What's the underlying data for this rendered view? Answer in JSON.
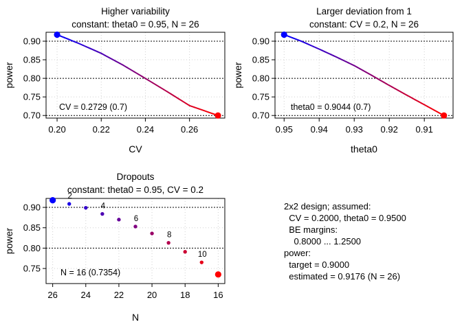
{
  "chart_data": [
    {
      "type": "line",
      "title": "Higher variability",
      "subtitle": "constant: theta0 = 0.95, N = 26",
      "xlabel": "CV",
      "ylabel": "power",
      "xlim": [
        0.195,
        0.276
      ],
      "ylim": [
        0.693,
        0.924
      ],
      "xticks": [
        0.2,
        0.22,
        0.24,
        0.26
      ],
      "xtick_labels": [
        "0.20",
        "0.22",
        "0.24",
        "0.26"
      ],
      "yticks": [
        0.7,
        0.75,
        0.8,
        0.85,
        0.9
      ],
      "ytick_labels": [
        "0.70",
        "0.75",
        "0.80",
        "0.85",
        "0.90"
      ],
      "hlines": [
        0.9,
        0.8,
        0.7
      ],
      "reverse_x": false,
      "grid": true,
      "x": [
        0.2,
        0.21,
        0.22,
        0.23,
        0.24,
        0.25,
        0.26,
        0.2729
      ],
      "y": [
        0.9176,
        0.8935,
        0.8673,
        0.8352,
        0.7998,
        0.7638,
        0.7267,
        0.7
      ],
      "start_point": {
        "x": 0.2,
        "y": 0.9176,
        "color": "#0000ff"
      },
      "end_point": {
        "x": 0.2729,
        "y": 0.7,
        "color": "#ff0000"
      },
      "annotation": "CV = 0.2729 (0.7)"
    },
    {
      "type": "line",
      "title": "Larger deviation from 1",
      "subtitle": "constant: CV = 0.2, N = 26",
      "xlabel": "theta0",
      "ylabel": "power",
      "xlim": [
        0.9526,
        0.9018
      ],
      "ylim": [
        0.693,
        0.924
      ],
      "xticks": [
        0.95,
        0.94,
        0.93,
        0.92,
        0.91
      ],
      "xtick_labels": [
        "0.95",
        "0.94",
        "0.93",
        "0.92",
        "0.91"
      ],
      "yticks": [
        0.7,
        0.75,
        0.8,
        0.85,
        0.9
      ],
      "ytick_labels": [
        "0.70",
        "0.75",
        "0.80",
        "0.85",
        "0.90"
      ],
      "hlines": [
        0.9,
        0.8,
        0.7
      ],
      "reverse_x": true,
      "grid": true,
      "x": [
        0.95,
        0.945,
        0.94,
        0.935,
        0.93,
        0.925,
        0.92,
        0.915,
        0.91,
        0.9044
      ],
      "y": [
        0.9176,
        0.8996,
        0.8787,
        0.857,
        0.8343,
        0.808,
        0.7809,
        0.7547,
        0.729,
        0.7
      ],
      "start_point": {
        "x": 0.95,
        "y": 0.9176,
        "color": "#0000ff"
      },
      "end_point": {
        "x": 0.9044,
        "y": 0.7,
        "color": "#ff0000"
      },
      "annotation": "theta0 = 0.9044 (0.7)"
    },
    {
      "type": "scatter",
      "title": "Dropouts",
      "subtitle": "constant: theta0 = 0.95, CV = 0.2",
      "xlabel": "N",
      "ylabel": "power",
      "xlim": [
        26.4,
        15.6
      ],
      "ylim": [
        0.713,
        0.922
      ],
      "xticks": [
        26,
        24,
        22,
        20,
        18,
        16
      ],
      "xtick_labels": [
        "26",
        "24",
        "22",
        "20",
        "18",
        "16"
      ],
      "yticks": [
        0.7,
        0.75,
        0.8,
        0.85,
        0.9
      ],
      "ytick_labels": [
        "0.70",
        "0.75",
        "0.80",
        "0.85",
        "0.90"
      ],
      "hlines": [
        0.9,
        0.8,
        0.7
      ],
      "reverse_x": true,
      "grid": true,
      "x": [
        26,
        25,
        24,
        23,
        22,
        21,
        20,
        19,
        18,
        17,
        16
      ],
      "y": [
        0.9176,
        0.9085,
        0.899,
        0.884,
        0.87,
        0.853,
        0.836,
        0.813,
        0.791,
        0.765,
        0.7354
      ],
      "point_labels": {
        "1": "2",
        "3": "4",
        "5": "6",
        "7": "8",
        "9": "10"
      },
      "start_point": {
        "x": 26,
        "y": 0.9176,
        "color": "#0000ff"
      },
      "end_point": {
        "x": 16,
        "y": 0.7354,
        "color": "#ff0000"
      },
      "annotation": "N = 16 (0.7354)"
    }
  ],
  "summary": {
    "lines": [
      "2x2 design; assumed:",
      "  CV = 0.2000, theta0 = 0.9500",
      "  BE margins:",
      "    0.8000 ... 1.2500",
      "power:",
      "  target = 0.9000",
      "  estimated = 0.9176 (N = 26)"
    ]
  }
}
